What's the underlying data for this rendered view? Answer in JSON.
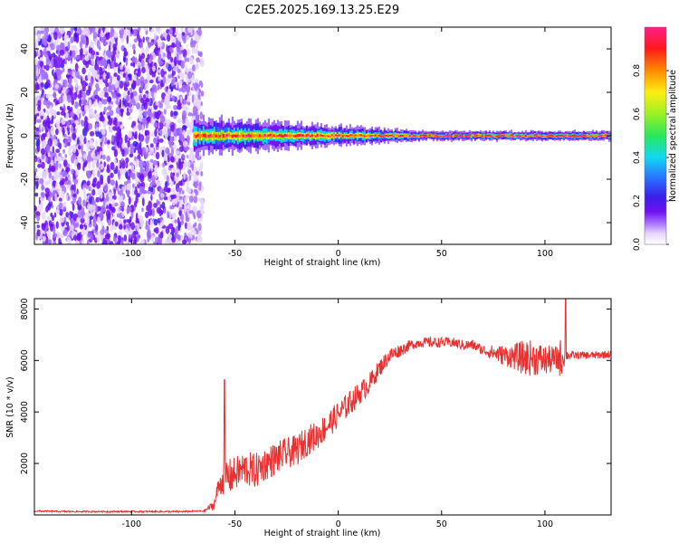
{
  "title": "C2E5.2025.169.13.25.E29",
  "colors": {
    "snr_line": "#e83030",
    "cmap": [
      "#ffffff",
      "#e6d6ff",
      "#a46dff",
      "#6f12f0",
      "#3a1fe8",
      "#2b6cff",
      "#10d8f0",
      "#28e85a",
      "#9af026",
      "#ffee10",
      "#ff8a00",
      "#ff1a1a",
      "#ff1e88"
    ]
  },
  "chart_data": [
    {
      "type": "heatmap",
      "xlabel": "Height of straight line (km)",
      "ylabel": "Frequency (Hz)",
      "xlim": [
        -147,
        132
      ],
      "ylim": [
        -50,
        50
      ],
      "x_ticks": [
        -100,
        -50,
        0,
        50,
        100
      ],
      "y_ticks": [
        -40,
        -20,
        0,
        20,
        40
      ],
      "grid": false,
      "colorbar": {
        "label": "Normalized spectral amplitude",
        "range": [
          0,
          1
        ],
        "ticks": [
          "0.0",
          "0.2",
          "0.4",
          "0.6",
          "0.8"
        ]
      },
      "regions": [
        {
          "x": [
            -147,
            -70
          ],
          "freq": [
            -50,
            50
          ],
          "amplitude": [
            0.05,
            0.3
          ],
          "pattern": "noise"
        },
        {
          "x": [
            -70,
            132
          ],
          "freq_center": 0,
          "half_width_hz": [
            2,
            8
          ],
          "amplitude_peak": 1.0,
          "pattern": "narrowband line"
        }
      ]
    },
    {
      "type": "line",
      "xlabel": "Height of straight line (km)",
      "ylabel": "SNR (10 * v/v)",
      "xlim": [
        -147,
        132
      ],
      "ylim": [
        0,
        8400
      ],
      "x_ticks": [
        -100,
        -50,
        0,
        50,
        100
      ],
      "y_ticks": [
        2000,
        4000,
        6000,
        8000
      ],
      "grid": false,
      "series": [
        {
          "x": [
            -147,
            -130,
            -110,
            -90,
            -75,
            -65,
            -60,
            -58,
            -55,
            -52,
            -50,
            -45,
            -40,
            -35,
            -30,
            -25,
            -20,
            -15,
            -10,
            -5,
            0,
            5,
            10,
            15,
            20,
            25,
            30,
            35,
            40,
            45,
            50,
            55,
            60,
            65,
            70,
            75,
            80,
            85,
            90,
            95,
            100,
            105,
            108,
            110,
            115,
            120,
            125,
            132
          ],
          "values": [
            150,
            130,
            130,
            130,
            130,
            150,
            400,
            1100,
            1500,
            1500,
            1600,
            1800,
            1700,
            2000,
            2200,
            2400,
            2500,
            2900,
            3100,
            3500,
            3900,
            4300,
            4700,
            5100,
            5700,
            6200,
            6400,
            6600,
            6700,
            6700,
            6700,
            6700,
            6600,
            6600,
            6400,
            6300,
            6200,
            6150,
            6100,
            6100,
            6000,
            6050,
            6100,
            6200,
            6200,
            6200,
            6200,
            6250
          ],
          "noise": [
            30,
            30,
            30,
            30,
            30,
            30,
            200,
            400,
            700,
            700,
            650,
            700,
            700,
            650,
            650,
            600,
            600,
            600,
            550,
            550,
            500,
            500,
            450,
            400,
            350,
            300,
            250,
            200,
            200,
            200,
            200,
            200,
            200,
            200,
            200,
            300,
            400,
            500,
            700,
            700,
            600,
            500,
            800,
            200,
            150,
            150,
            150,
            150
          ]
        }
      ],
      "annotations": [
        {
          "x": -55,
          "value": 5250,
          "label": "spike"
        },
        {
          "x": 110,
          "value": 8400,
          "label": "spike"
        }
      ]
    }
  ]
}
